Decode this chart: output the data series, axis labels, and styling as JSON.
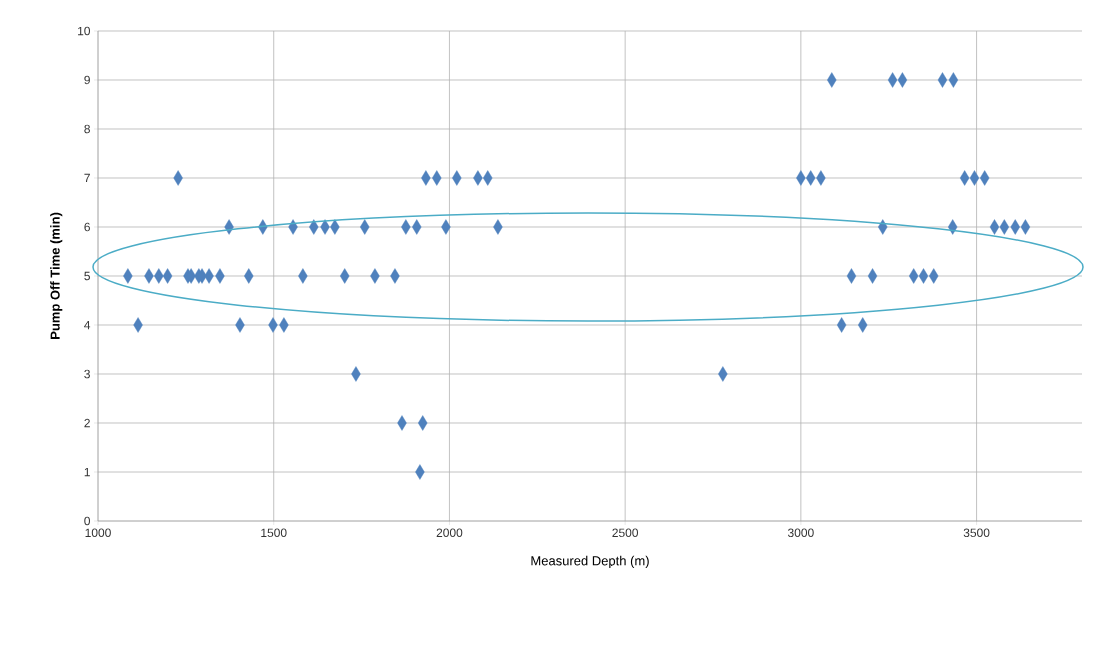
{
  "chart_data": {
    "type": "scatter",
    "xlabel": "Measured Depth (m)",
    "ylabel": "Pump Off Time (min)",
    "xlim": [
      1000,
      3800
    ],
    "xticks": [
      1000,
      1500,
      2000,
      2500,
      3000,
      3500
    ],
    "ylim": [
      0,
      10
    ],
    "yticks": [
      0,
      1,
      2,
      3,
      4,
      5,
      6,
      7,
      8,
      9,
      10
    ],
    "grid": true,
    "marker": "diamond",
    "series": [
      {
        "color": "#4f81bd",
        "x": [
          1085,
          1145,
          1173,
          1198,
          1256,
          1265,
          1287,
          1296,
          1316,
          1347,
          1429,
          1583,
          1702,
          1788,
          1845,
          3144,
          3204,
          3321,
          3349,
          3378,
          1373,
          1469,
          1555,
          1614,
          1646,
          1674,
          1759,
          1876,
          1907,
          1990,
          2138,
          3233,
          3432,
          3551,
          3579,
          3610,
          3639,
          1228,
          1933,
          1964,
          2021,
          2081,
          2109,
          3000,
          3028,
          3057,
          3466,
          3494,
          3523,
          3088,
          3261,
          3289,
          3403,
          3434,
          1114,
          1404,
          1498,
          1529,
          3116,
          3176,
          1734,
          2778,
          1865,
          1924,
          1916
        ],
        "values": [
          5,
          5,
          5,
          5,
          5,
          5,
          5,
          5,
          5,
          5,
          5,
          5,
          5,
          5,
          5,
          5,
          5,
          5,
          5,
          5,
          6,
          6,
          6,
          6,
          6,
          6,
          6,
          6,
          6,
          6,
          6,
          6,
          6,
          6,
          6,
          6,
          6,
          7,
          7,
          7,
          7,
          7,
          7,
          7,
          7,
          7,
          7,
          7,
          7,
          9,
          9,
          9,
          9,
          9,
          4,
          4,
          4,
          4,
          4,
          4,
          3,
          3,
          2,
          2,
          1
        ]
      }
    ]
  }
}
